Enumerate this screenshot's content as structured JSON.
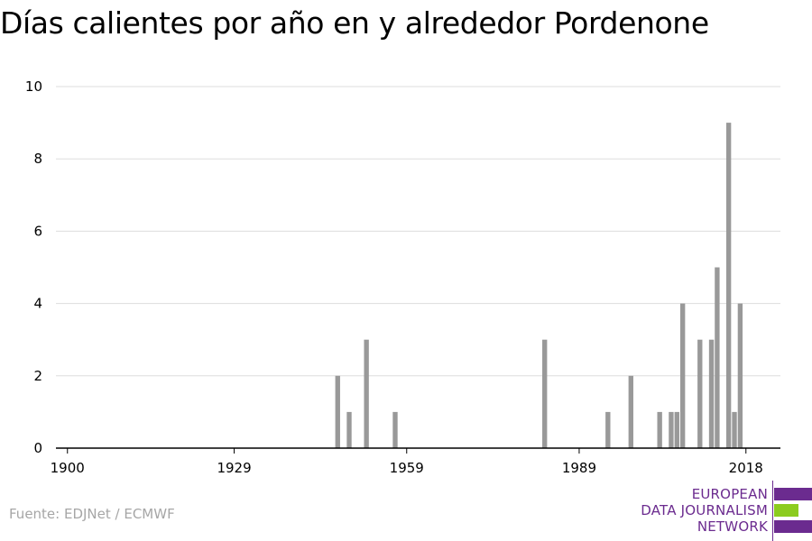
{
  "chart_data": {
    "type": "bar",
    "title": "Días calientes por año en y alrededor Pordenone",
    "xlabel": "",
    "ylabel": "",
    "xlim": [
      1898,
      2024
    ],
    "ylim": [
      0,
      10
    ],
    "y_ticks": [
      0,
      2,
      4,
      6,
      8,
      10
    ],
    "x_ticks": [
      1900,
      1929,
      1959,
      1989,
      2018
    ],
    "grid": true,
    "bar_color": "#999999",
    "x": [
      1947,
      1949,
      1952,
      1957,
      1983,
      1994,
      1998,
      2003,
      2005,
      2006,
      2007,
      2010,
      2012,
      2013,
      2015,
      2016,
      2017
    ],
    "values": [
      2,
      1,
      3,
      1,
      3,
      1,
      2,
      1,
      1,
      1,
      4,
      3,
      3,
      5,
      9,
      1,
      4
    ]
  },
  "footer": {
    "source": "Fuente: EDJNet / ECMWF"
  },
  "logo": {
    "line1": "EUROPEAN",
    "line2": "DATA JOURNALISM",
    "line3": "NETWORK",
    "purple": "#6b2b8f",
    "green": "#8ccc1f"
  }
}
